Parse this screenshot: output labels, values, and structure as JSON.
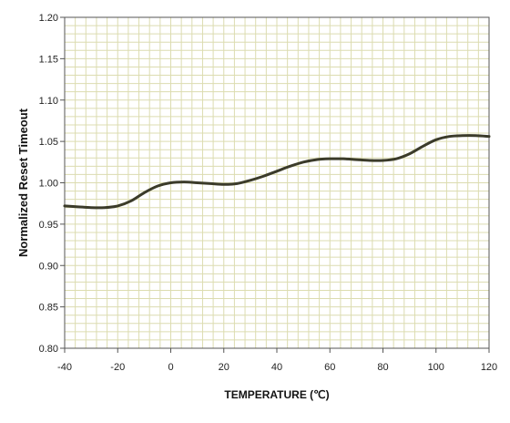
{
  "chart_data": {
    "type": "line",
    "title": "",
    "xlabel": "TEMPERATURE (℃)",
    "ylabel": "Normalized Reset Timeout",
    "xlim": [
      -40,
      120
    ],
    "ylim": [
      0.8,
      1.2
    ],
    "x_ticks": [
      -40,
      -20,
      0,
      20,
      40,
      60,
      80,
      100,
      120
    ],
    "y_ticks": [
      0.8,
      0.85,
      0.9,
      0.95,
      1.0,
      1.05,
      1.1,
      1.15,
      1.2
    ],
    "x_tick_labels": [
      "-40",
      "-20",
      "0",
      "20",
      "40",
      "60",
      "80",
      "100",
      "120"
    ],
    "y_tick_labels": [
      "0.80",
      "0.85",
      "0.90",
      "0.95",
      "1.00",
      "1.05",
      "1.10",
      "1.15",
      "1.20"
    ],
    "x_minor_step": 4,
    "y_minor_step": 0.01,
    "grid": true,
    "legend": "none",
    "colors": {
      "line": "#3b3b2a",
      "grid": "#dcdcb0",
      "axis": "#555555"
    },
    "series": [
      {
        "x": [
          -40,
          -35,
          -30,
          -25,
          -20,
          -15,
          -10,
          -5,
          0,
          5,
          10,
          15,
          20,
          25,
          30,
          35,
          40,
          45,
          50,
          55,
          60,
          65,
          70,
          75,
          80,
          85,
          90,
          95,
          100,
          105,
          110,
          115,
          120
        ],
        "y": [
          0.972,
          0.971,
          0.97,
          0.97,
          0.972,
          0.978,
          0.988,
          0.996,
          1.0,
          1.001,
          1.0,
          0.999,
          0.998,
          0.999,
          1.003,
          1.008,
          1.014,
          1.02,
          1.025,
          1.028,
          1.029,
          1.029,
          1.028,
          1.027,
          1.027,
          1.029,
          1.035,
          1.044,
          1.052,
          1.056,
          1.057,
          1.057,
          1.056
        ]
      }
    ]
  }
}
